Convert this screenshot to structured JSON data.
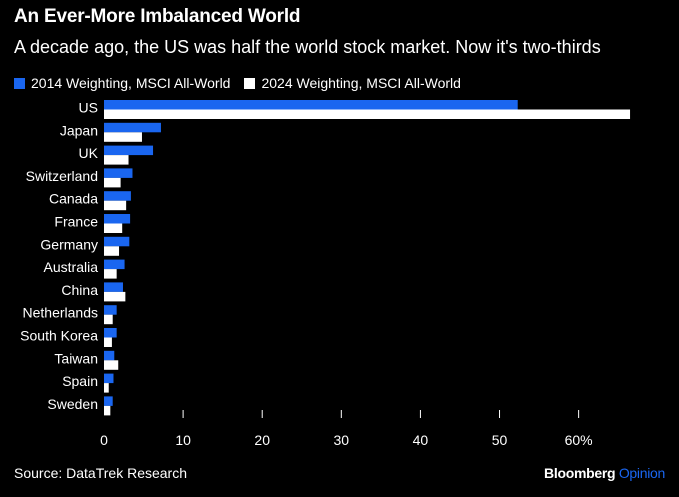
{
  "colors": {
    "background": "#000000",
    "text": "#ffffff",
    "series_2014": "#1a66f0",
    "series_2024": "#ffffff",
    "axis": "#ffffff"
  },
  "header": {
    "title": "An Ever-More Imbalanced World",
    "subtitle": "A decade ago, the US was half the world stock market. Now it's two-thirds"
  },
  "footer": {
    "source": "Source: DataTrek Research",
    "brand_main": "Bloomberg",
    "brand_sub": "Opinion"
  },
  "chart_data": {
    "type": "bar",
    "orientation": "horizontal",
    "categories": [
      "US",
      "Japan",
      "UK",
      "Switzerland",
      "Canada",
      "France",
      "Germany",
      "Australia",
      "China",
      "Netherlands",
      "South Korea",
      "Taiwan",
      "Spain",
      "Sweden"
    ],
    "series": [
      {
        "name": "2014 Weighting, MSCI All-World",
        "color": "#1a66f0",
        "values": [
          52.3,
          7.2,
          6.2,
          3.6,
          3.4,
          3.3,
          3.2,
          2.6,
          2.4,
          1.6,
          1.6,
          1.3,
          1.2,
          1.1
        ]
      },
      {
        "name": "2024 Weighting, MSCI All-World",
        "color": "#ffffff",
        "values": [
          66.5,
          4.8,
          3.1,
          2.1,
          2.8,
          2.3,
          1.9,
          1.6,
          2.7,
          1.1,
          1.0,
          1.8,
          0.6,
          0.8
        ]
      }
    ],
    "x_ticks": [
      "0",
      "10",
      "20",
      "30",
      "40",
      "50",
      "60%"
    ],
    "x_tick_values": [
      0,
      10,
      20,
      30,
      40,
      50,
      60
    ],
    "xlim": [
      0,
      67
    ],
    "legend_position": "top-left",
    "grid": false
  }
}
